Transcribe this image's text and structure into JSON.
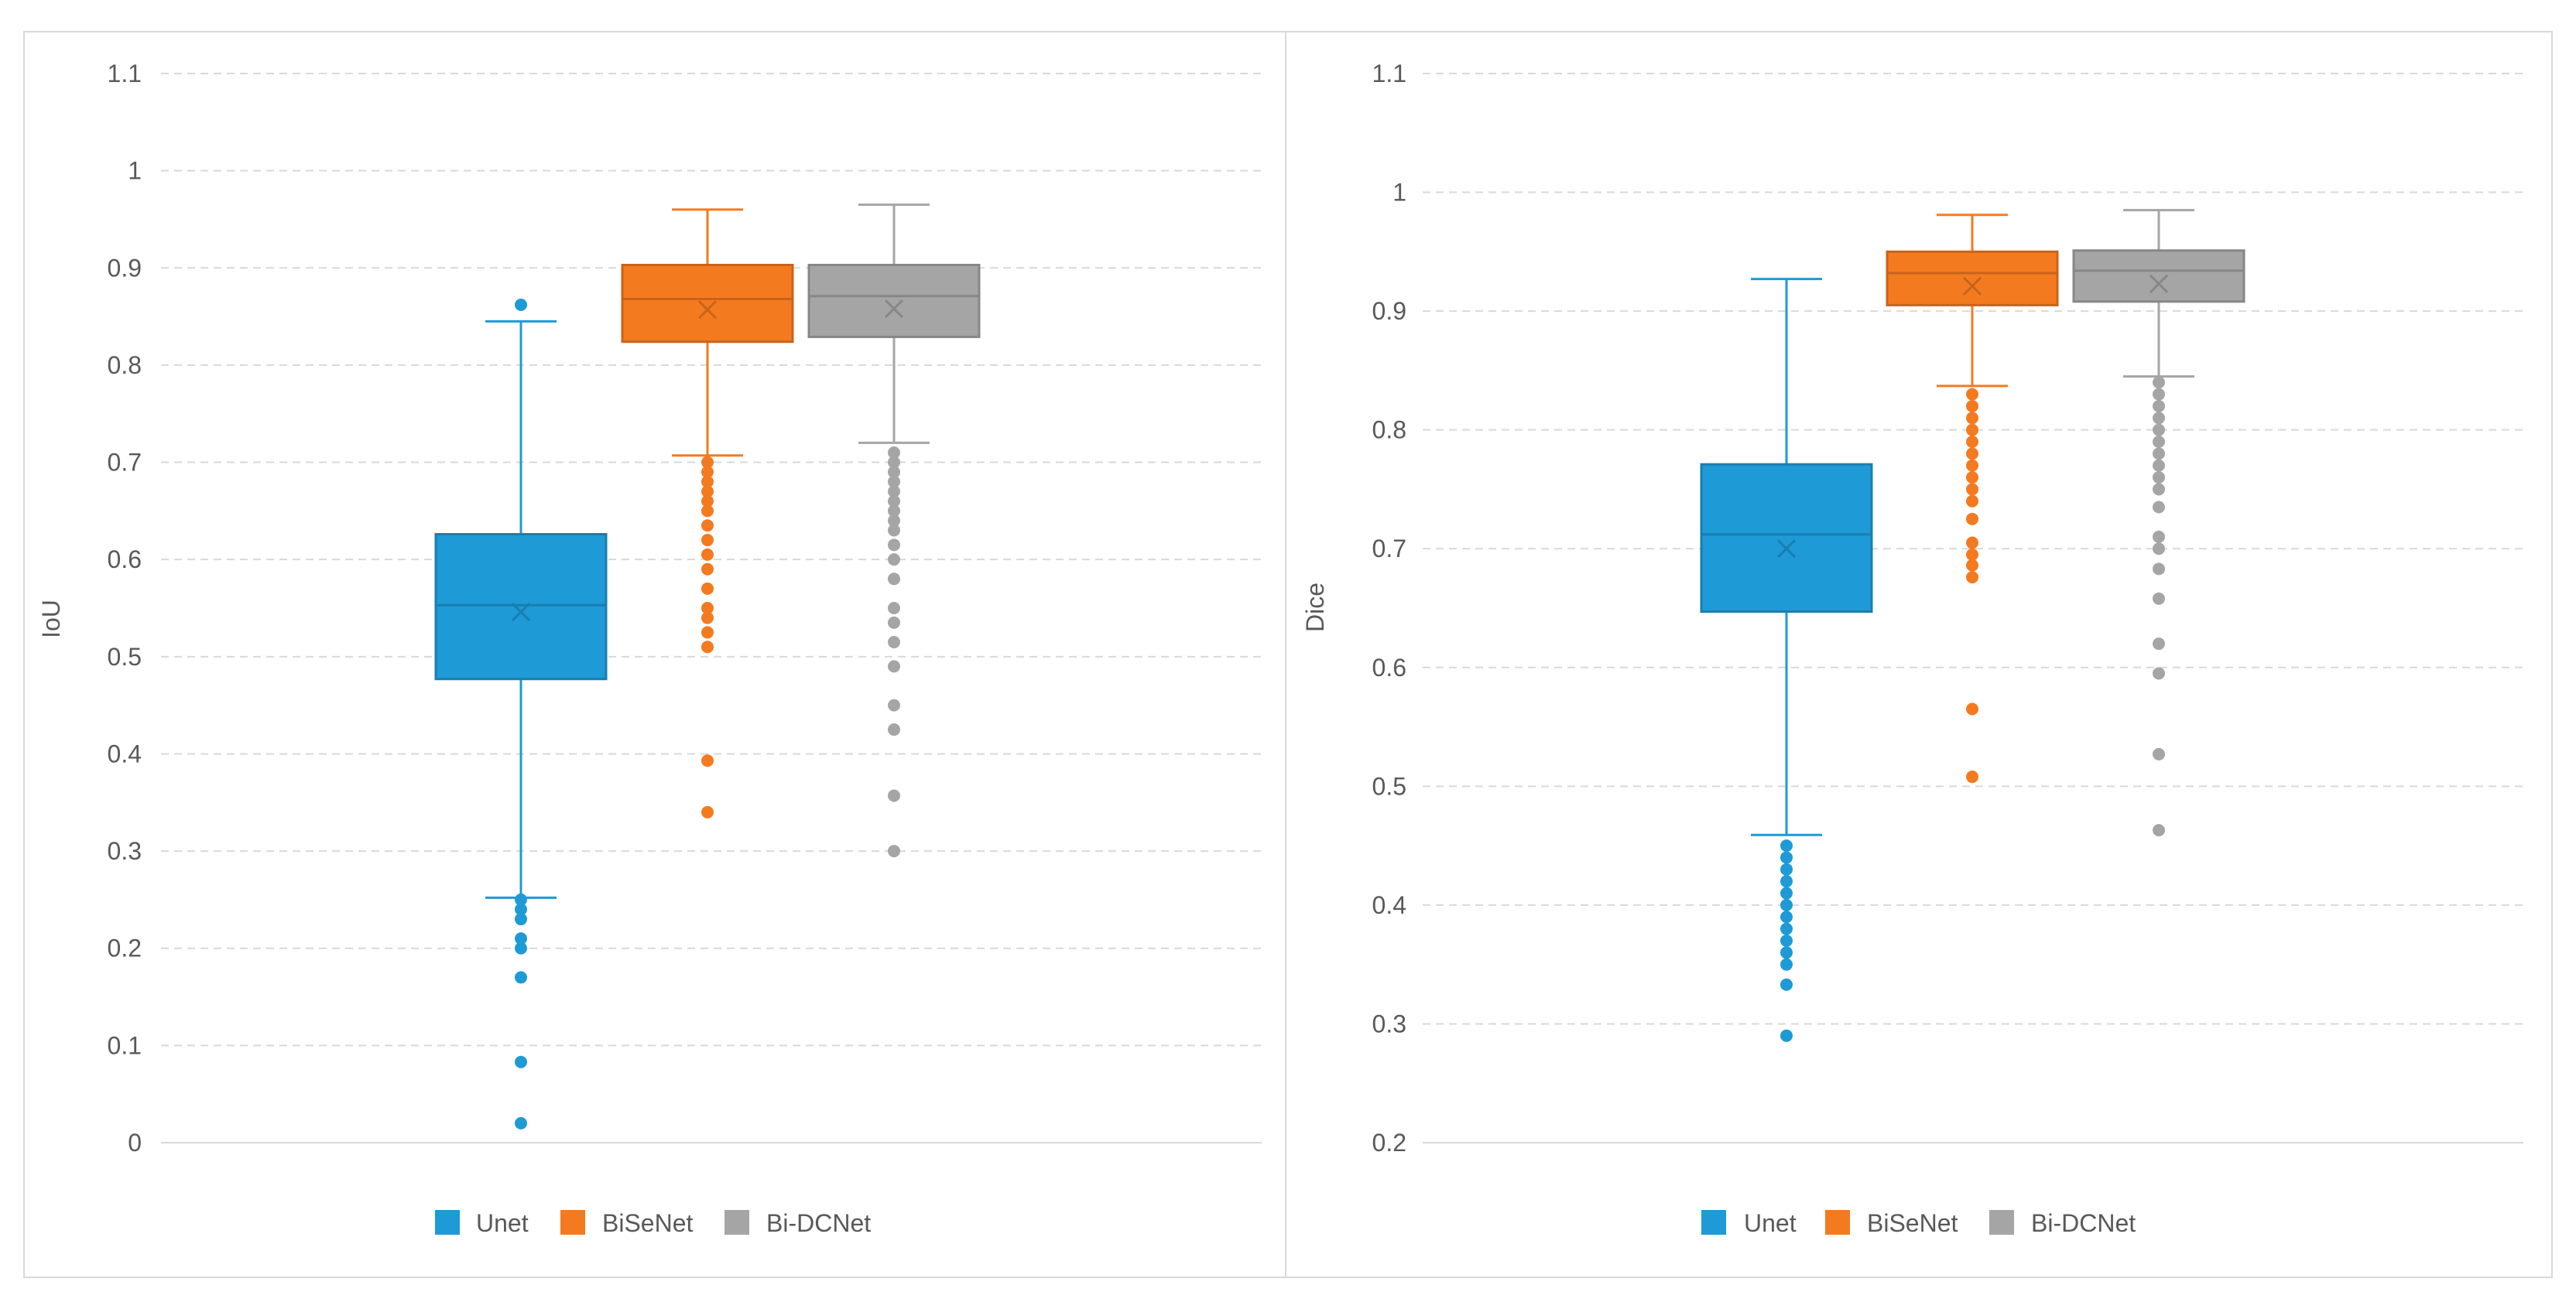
{
  "chart_data": [
    {
      "type": "box",
      "title": "",
      "xlabel": "",
      "ylabel": "IoU",
      "ylim": [
        0,
        1.1
      ],
      "ytick_labels": [
        "0",
        "0.1",
        "0.2",
        "0.3",
        "0.4",
        "0.5",
        "0.6",
        "0.7",
        "0.8",
        "0.9",
        "1",
        "1.1"
      ],
      "grid": true,
      "legend_position": "bottom",
      "series": [
        {
          "name": "Unet",
          "color": "#1e9ad6",
          "whisker_low": 0.252,
          "q1": 0.477,
          "median": 0.553,
          "q3": 0.626,
          "whisker_high": 0.845,
          "mean": 0.546,
          "outliers": [
            0.862,
            0.25,
            0.24,
            0.23,
            0.21,
            0.2,
            0.17,
            0.083,
            0.02
          ]
        },
        {
          "name": "BiSeNet",
          "color": "#f47a20",
          "whisker_low": 0.707,
          "q1": 0.824,
          "median": 0.868,
          "q3": 0.903,
          "whisker_high": 0.96,
          "mean": 0.857,
          "outliers": [
            0.7,
            0.69,
            0.68,
            0.67,
            0.66,
            0.65,
            0.635,
            0.62,
            0.605,
            0.59,
            0.57,
            0.55,
            0.54,
            0.525,
            0.51,
            0.393,
            0.34
          ]
        },
        {
          "name": "Bi-DCNet",
          "color": "#a5a5a5",
          "whisker_low": 0.72,
          "q1": 0.829,
          "median": 0.871,
          "q3": 0.903,
          "whisker_high": 0.965,
          "mean": 0.858,
          "outliers": [
            0.71,
            0.7,
            0.69,
            0.68,
            0.67,
            0.66,
            0.65,
            0.64,
            0.63,
            0.615,
            0.6,
            0.58,
            0.55,
            0.535,
            0.515,
            0.49,
            0.45,
            0.425,
            0.357,
            0.3
          ]
        }
      ]
    },
    {
      "type": "box",
      "title": "",
      "xlabel": "",
      "ylabel": "Dice",
      "ylim": [
        0.2,
        1.1
      ],
      "ytick_labels": [
        "0.2",
        "0.3",
        "0.4",
        "0.5",
        "0.6",
        "0.7",
        "0.8",
        "0.9",
        "1",
        "1.1"
      ],
      "grid": true,
      "legend_position": "bottom",
      "series": [
        {
          "name": "Unet",
          "color": "#1e9ad6",
          "whisker_low": 0.459,
          "q1": 0.647,
          "median": 0.712,
          "q3": 0.771,
          "whisker_high": 0.927,
          "mean": 0.7,
          "outliers": [
            0.45,
            0.44,
            0.43,
            0.42,
            0.41,
            0.4,
            0.39,
            0.38,
            0.37,
            0.36,
            0.35,
            0.333,
            0.29
          ]
        },
        {
          "name": "BiSeNet",
          "color": "#f47a20",
          "whisker_low": 0.837,
          "q1": 0.905,
          "median": 0.932,
          "q3": 0.95,
          "whisker_high": 0.981,
          "mean": 0.921,
          "outliers": [
            0.83,
            0.82,
            0.81,
            0.8,
            0.79,
            0.78,
            0.77,
            0.76,
            0.75,
            0.74,
            0.725,
            0.705,
            0.695,
            0.686,
            0.676,
            0.565,
            0.508
          ]
        },
        {
          "name": "Bi-DCNet",
          "color": "#a5a5a5",
          "whisker_low": 0.845,
          "q1": 0.908,
          "median": 0.934,
          "q3": 0.951,
          "whisker_high": 0.985,
          "mean": 0.923,
          "outliers": [
            0.84,
            0.83,
            0.82,
            0.81,
            0.8,
            0.79,
            0.78,
            0.77,
            0.76,
            0.75,
            0.735,
            0.71,
            0.7,
            0.683,
            0.658,
            0.62,
            0.595,
            0.527,
            0.463
          ]
        }
      ]
    }
  ]
}
